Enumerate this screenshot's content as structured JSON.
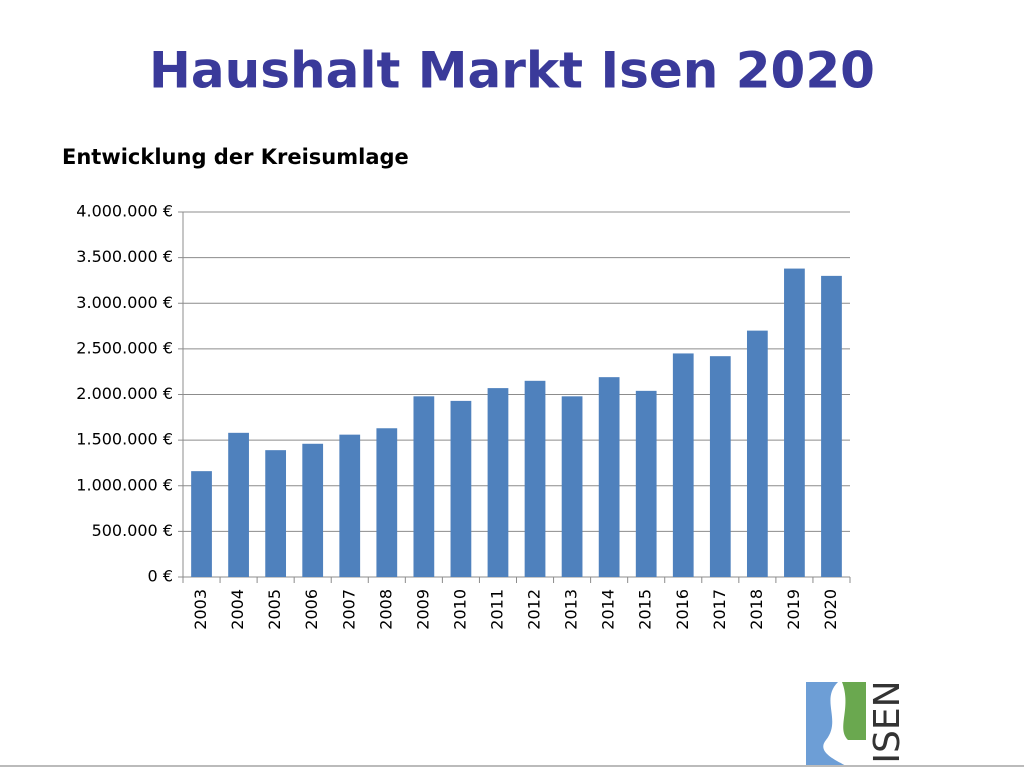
{
  "chart_data": {
    "type": "bar",
    "title": "Haushalt Markt Isen 2020",
    "subtitle": "Entwicklung der Kreisumlage",
    "categories": [
      "2003",
      "2004",
      "2005",
      "2006",
      "2007",
      "2008",
      "2009",
      "2010",
      "2011",
      "2012",
      "2013",
      "2014",
      "2015",
      "2016",
      "2017",
      "2018",
      "2019",
      "2020"
    ],
    "values": [
      1160000,
      1580000,
      1390000,
      1460000,
      1560000,
      1630000,
      1980000,
      1930000,
      2070000,
      2150000,
      1980000,
      2190000,
      2040000,
      2450000,
      2420000,
      2700000,
      3380000,
      3300000
    ],
    "color": "#4f81bd",
    "ylim": [
      0,
      4000000
    ],
    "yticks": [
      {
        "value": 0,
        "label": "0 €"
      },
      {
        "value": 500000,
        "label": "500.000 €"
      },
      {
        "value": 1000000,
        "label": "1.000.000 €"
      },
      {
        "value": 1500000,
        "label": "1.500.000 €"
      },
      {
        "value": 2000000,
        "label": "2.000.000 €"
      },
      {
        "value": 2500000,
        "label": "2.500.000 €"
      },
      {
        "value": 3000000,
        "label": "3.000.000 €"
      },
      {
        "value": 3500000,
        "label": "3.500.000 €"
      },
      {
        "value": 4000000,
        "label": "4.000.000 €"
      }
    ],
    "grid": true
  },
  "logo": {
    "text": "ISEN"
  }
}
